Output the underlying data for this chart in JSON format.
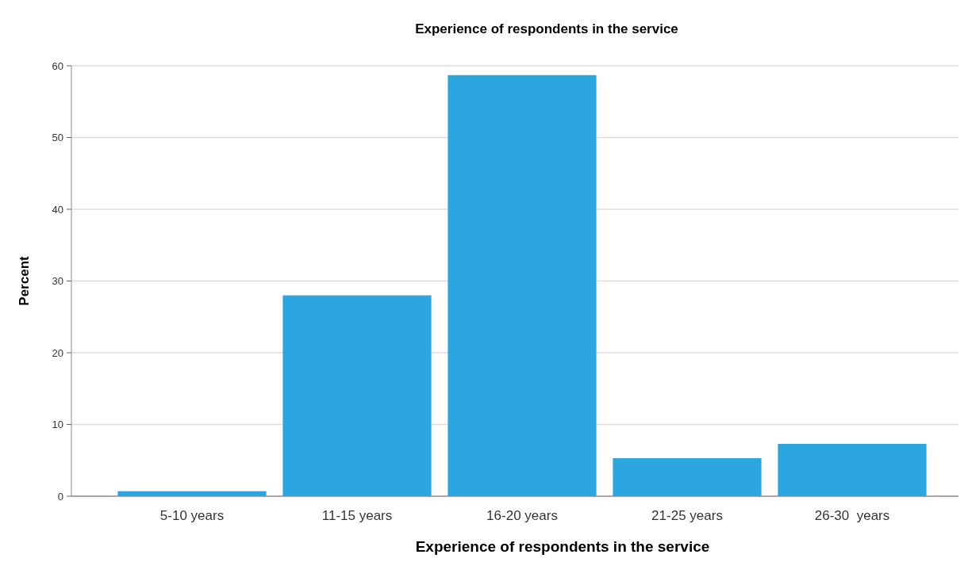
{
  "chart_data": {
    "type": "bar",
    "title": "Experience of respondents in the service",
    "xlabel": "Experience of respondents in the service",
    "ylabel": "Percent",
    "categories": [
      "5-10 years",
      "11-15 years",
      "16-20 years",
      "21-25 years",
      "26-30  years"
    ],
    "values": [
      0.7,
      28,
      58.7,
      5.3,
      7.3
    ],
    "color": "#2ca6de",
    "ylim": [
      0,
      60
    ],
    "yticks": [
      0,
      10,
      20,
      30,
      40,
      50,
      60
    ],
    "grid": "y"
  }
}
